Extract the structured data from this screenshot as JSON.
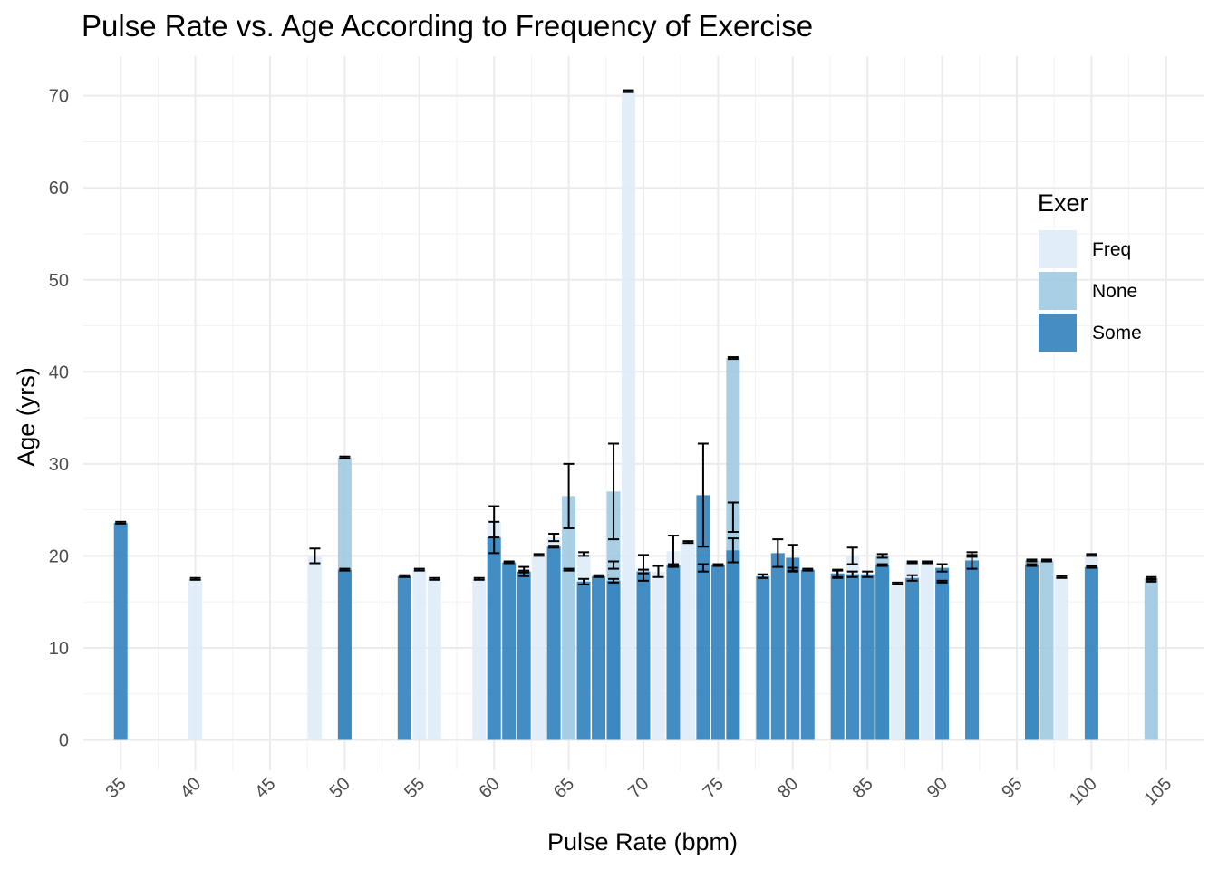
{
  "chart_data": {
    "type": "bar",
    "title": "Pulse Rate vs. Age According to Frequency of Exercise",
    "xlabel": "Pulse Rate (bpm)",
    "ylabel": "Age (yrs)",
    "xlim": [
      32.5,
      107.5
    ],
    "ylim": [
      -3.3,
      74.3
    ],
    "x_ticks": [
      35,
      40,
      45,
      50,
      55,
      60,
      65,
      70,
      75,
      80,
      85,
      90,
      95,
      100,
      105
    ],
    "y_ticks": [
      0,
      10,
      20,
      30,
      40,
      50,
      60,
      70
    ],
    "grid": true,
    "legend": {
      "title": "Exer",
      "position": "right",
      "entries": [
        "Freq",
        "None",
        "Some"
      ]
    },
    "colors": {
      "Freq": "#deebf7",
      "None": "#9ecae1",
      "Some": "#3182bd"
    },
    "series": [
      {
        "name": "Freq",
        "points": [
          {
            "x": 40,
            "y": 17.5,
            "err": [
              17.4,
              17.6
            ]
          },
          {
            "x": 48,
            "y": 20.0,
            "err": [
              19.2,
              20.8
            ]
          },
          {
            "x": 55,
            "y": 18.5,
            "err": [
              18.4,
              18.6
            ]
          },
          {
            "x": 56,
            "y": 17.5,
            "err": [
              17.4,
              17.6
            ]
          },
          {
            "x": 59,
            "y": 17.5,
            "err": [
              17.4,
              17.6
            ]
          },
          {
            "x": 60,
            "y": 23.7,
            "err": [
              22.0,
              25.4
            ]
          },
          {
            "x": 62,
            "y": 18.3,
            "err": [
              17.8,
              18.8
            ]
          },
          {
            "x": 63,
            "y": 20.1,
            "err": [
              20.0,
              20.2
            ]
          },
          {
            "x": 64,
            "y": 22.0,
            "err": [
              21.6,
              22.4
            ]
          },
          {
            "x": 65,
            "y": 18.5,
            "err": [
              18.4,
              18.6
            ]
          },
          {
            "x": 66,
            "y": 20.2,
            "err": [
              20.0,
              20.4
            ]
          },
          {
            "x": 68,
            "y": 19.0,
            "err": [
              18.6,
              19.4
            ]
          },
          {
            "x": 69,
            "y": 70.5,
            "err": [
              70.4,
              70.6
            ]
          },
          {
            "x": 70,
            "y": 18.7,
            "err": [
              17.3,
              20.1
            ]
          },
          {
            "x": 71,
            "y": 18.3,
            "err": [
              17.7,
              18.9
            ]
          },
          {
            "x": 72,
            "y": 20.5,
            "err": [
              18.8,
              22.2
            ]
          },
          {
            "x": 73,
            "y": 21.5,
            "err": [
              21.4,
              21.6
            ]
          },
          {
            "x": 74,
            "y": 18.7,
            "err": [
              18.3,
              19.1
            ]
          },
          {
            "x": 76,
            "y": 24.2,
            "err": [
              22.6,
              25.8
            ]
          },
          {
            "x": 80,
            "y": 18.5,
            "err": [
              18.3,
              18.7
            ]
          },
          {
            "x": 83,
            "y": 18.0,
            "err": [
              17.6,
              18.4
            ]
          },
          {
            "x": 84,
            "y": 20.0,
            "err": [
              19.1,
              20.9
            ]
          },
          {
            "x": 87,
            "y": 17.0,
            "err": [
              16.9,
              17.1
            ]
          },
          {
            "x": 88,
            "y": 19.3,
            "err": [
              19.2,
              19.4
            ]
          },
          {
            "x": 89,
            "y": 19.3,
            "err": [
              19.2,
              19.4
            ]
          },
          {
            "x": 90,
            "y": 17.2,
            "err": [
              17.1,
              17.3
            ]
          },
          {
            "x": 92,
            "y": 20.0,
            "err": [
              19.9,
              20.1
            ]
          },
          {
            "x": 98,
            "y": 17.7,
            "err": [
              17.6,
              17.8
            ]
          },
          {
            "x": 100,
            "y": 20.1,
            "err": [
              20.0,
              20.2
            ]
          },
          {
            "x": 104,
            "y": 17.3,
            "err": [
              17.2,
              17.4
            ]
          }
        ]
      },
      {
        "name": "None",
        "points": [
          {
            "x": 50,
            "y": 30.7,
            "err": [
              30.6,
              30.8
            ]
          },
          {
            "x": 65,
            "y": 26.5,
            "err": [
              23.0,
              30.0
            ]
          },
          {
            "x": 68,
            "y": 27.0,
            "err": [
              21.8,
              32.2
            ]
          },
          {
            "x": 76,
            "y": 41.5,
            "err": [
              41.4,
              41.6
            ]
          },
          {
            "x": 86,
            "y": 20.0,
            "err": [
              19.8,
              20.2
            ]
          },
          {
            "x": 96,
            "y": 19.5,
            "err": [
              19.4,
              19.6
            ]
          },
          {
            "x": 97,
            "y": 19.5,
            "err": [
              19.4,
              19.6
            ]
          },
          {
            "x": 104,
            "y": 17.6,
            "err": [
              17.5,
              17.7
            ]
          }
        ]
      },
      {
        "name": "Some",
        "points": [
          {
            "x": 35,
            "y": 23.6,
            "err": [
              23.5,
              23.7
            ]
          },
          {
            "x": 50,
            "y": 18.5,
            "err": [
              18.4,
              18.6
            ]
          },
          {
            "x": 54,
            "y": 17.8,
            "err": [
              17.7,
              17.9
            ]
          },
          {
            "x": 60,
            "y": 22.0,
            "err": [
              20.3,
              23.7
            ]
          },
          {
            "x": 61,
            "y": 19.3,
            "err": [
              19.2,
              19.4
            ]
          },
          {
            "x": 62,
            "y": 18.3,
            "err": [
              18.2,
              18.4
            ]
          },
          {
            "x": 64,
            "y": 21.0,
            "err": [
              20.9,
              21.1
            ]
          },
          {
            "x": 66,
            "y": 17.2,
            "err": [
              16.9,
              17.5
            ]
          },
          {
            "x": 67,
            "y": 17.8,
            "err": [
              17.7,
              17.9
            ]
          },
          {
            "x": 68,
            "y": 17.3,
            "err": [
              17.1,
              17.5
            ]
          },
          {
            "x": 70,
            "y": 18.3,
            "err": [
              18.1,
              18.5
            ]
          },
          {
            "x": 72,
            "y": 19.0,
            "err": [
              18.9,
              19.1
            ]
          },
          {
            "x": 74,
            "y": 26.6,
            "err": [
              21.0,
              32.2
            ]
          },
          {
            "x": 75,
            "y": 19.0,
            "err": [
              18.9,
              19.1
            ]
          },
          {
            "x": 76,
            "y": 20.6,
            "err": [
              19.3,
              21.9
            ]
          },
          {
            "x": 78,
            "y": 17.8,
            "err": [
              17.6,
              18.0
            ]
          },
          {
            "x": 79,
            "y": 20.3,
            "err": [
              18.8,
              21.8
            ]
          },
          {
            "x": 80,
            "y": 19.8,
            "err": [
              18.4,
              21.2
            ]
          },
          {
            "x": 81,
            "y": 18.5,
            "err": [
              18.4,
              18.6
            ]
          },
          {
            "x": 83,
            "y": 18.1,
            "err": [
              17.7,
              18.5
            ]
          },
          {
            "x": 84,
            "y": 18.0,
            "err": [
              17.7,
              18.3
            ]
          },
          {
            "x": 85,
            "y": 18.0,
            "err": [
              17.7,
              18.3
            ]
          },
          {
            "x": 86,
            "y": 19.0,
            "err": [
              18.9,
              19.1
            ]
          },
          {
            "x": 88,
            "y": 17.6,
            "err": [
              17.3,
              17.9
            ]
          },
          {
            "x": 90,
            "y": 18.7,
            "err": [
              18.3,
              19.1
            ]
          },
          {
            "x": 92,
            "y": 19.5,
            "err": [
              18.6,
              20.4
            ]
          },
          {
            "x": 96,
            "y": 19.0,
            "err": [
              18.9,
              19.1
            ]
          },
          {
            "x": 100,
            "y": 18.8,
            "err": [
              18.7,
              18.9
            ]
          }
        ]
      }
    ]
  }
}
